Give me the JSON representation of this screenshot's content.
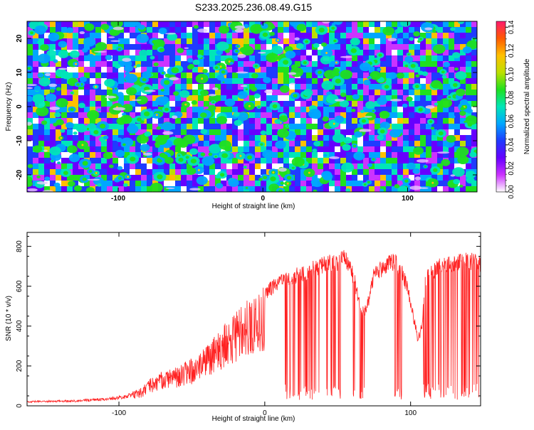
{
  "title": "S233.2025.236.08.49.G15",
  "chart_data": [
    {
      "type": "heatmap",
      "xlabel": "Height of straight line (km)",
      "ylabel": "Frequency (Hz)",
      "xlim": [
        -163,
        148
      ],
      "ylim": [
        -25,
        25
      ],
      "xticks": [
        -100,
        0,
        100
      ],
      "yticks": [
        -20,
        -10,
        0,
        10,
        20
      ],
      "colorbar": {
        "label": "Normalized spectral amplitude",
        "range": [
          0,
          0.145
        ],
        "ticks": [
          "0.00",
          "0.02",
          "0.04",
          "0.06",
          "0.08",
          "0.10",
          "0.12",
          "0.14"
        ],
        "colormap": [
          "#ffffff",
          "#cc33ff",
          "#6600ff",
          "#1f3bff",
          "#00a6ff",
          "#00e6b8",
          "#1fe01f",
          "#bde000",
          "#ffc000",
          "#ff5a00",
          "#ff1a6e"
        ]
      }
    },
    {
      "type": "line",
      "xlabel": "Height of straight line (km)",
      "ylabel": "SNR (10 * v/v)",
      "xlim": [
        -163,
        148
      ],
      "ylim": [
        0,
        870
      ],
      "xticks": [
        -100,
        0,
        100
      ],
      "yticks": [
        0,
        200,
        400,
        600,
        800
      ],
      "color": "#ff2222",
      "envelope": {
        "x": [
          -163,
          -130,
          -110,
          -95,
          -85,
          -78,
          -70,
          -60,
          -50,
          -40,
          -30,
          -20,
          -10,
          0,
          5,
          10,
          15,
          20,
          30,
          40,
          50,
          55,
          58,
          62,
          66,
          70,
          75,
          80,
          85,
          90,
          95,
          100,
          103,
          105,
          108,
          110,
          115,
          120,
          130,
          140,
          148
        ],
        "y": [
          25,
          30,
          40,
          55,
          90,
          140,
          180,
          200,
          240,
          300,
          390,
          480,
          560,
          600,
          630,
          660,
          680,
          690,
          720,
          750,
          770,
          790,
          760,
          650,
          500,
          520,
          700,
          730,
          760,
          770,
          700,
          560,
          430,
          350,
          430,
          680,
          720,
          740,
          760,
          770,
          760
        ]
      },
      "dropouts": [
        [
          14,
          38
        ],
        [
          42,
          52
        ],
        [
          60,
          70
        ],
        [
          88,
          95
        ],
        [
          108,
          147
        ]
      ]
    }
  ]
}
